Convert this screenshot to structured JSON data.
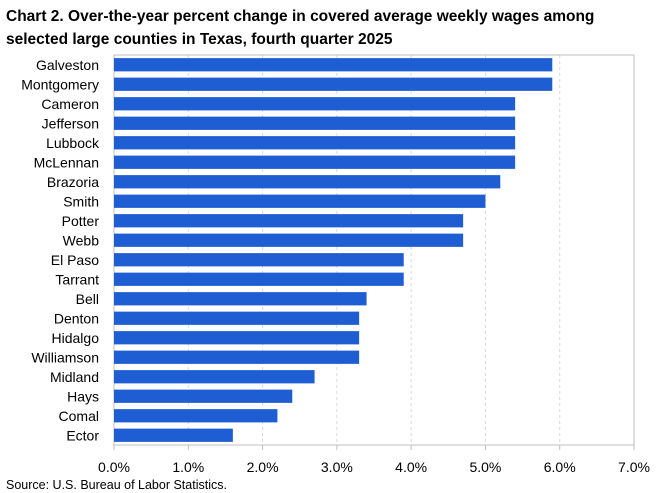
{
  "chart_data": {
    "type": "bar",
    "orientation": "horizontal",
    "title": "Chart 2. Over-the-year percent change in covered average weekly wages among selected large counties in Texas, fourth quarter 2025",
    "source": "Source: U.S. Bureau of Labor Statistics.",
    "categories": [
      "Galveston",
      "Montgomery",
      "Cameron",
      "Jefferson",
      "Lubbock",
      "McLennan",
      "Brazoria",
      "Smith",
      "Potter",
      "Webb",
      "El Paso",
      "Tarrant",
      "Bell",
      "Denton",
      "Hidalgo",
      "Williamson",
      "Midland",
      "Hays",
      "Comal",
      "Ector"
    ],
    "values": [
      5.9,
      5.9,
      5.4,
      5.4,
      5.4,
      5.4,
      5.2,
      5.0,
      4.7,
      4.7,
      3.9,
      3.9,
      3.4,
      3.3,
      3.3,
      3.3,
      2.7,
      2.4,
      2.2,
      1.6
    ],
    "xticks": [
      "0.0%",
      "1.0%",
      "2.0%",
      "3.0%",
      "4.0%",
      "5.0%",
      "6.0%",
      "7.0%"
    ],
    "xlim": [
      0,
      7
    ],
    "xlabel": "",
    "ylabel": "",
    "grid": "vertical",
    "bar_color": "#1f5dd2",
    "grid_color": "#d9d9d9",
    "axis_color": "#bfbfbf"
  }
}
